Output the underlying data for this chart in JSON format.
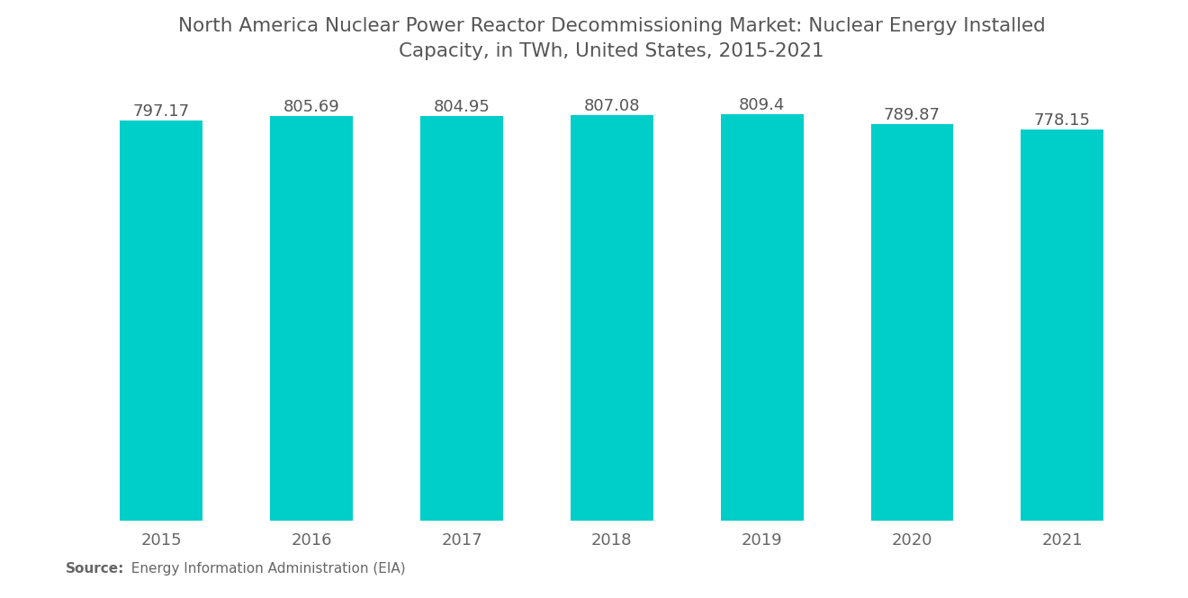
{
  "title_line1": "North America Nuclear Power Reactor Decommissioning Market: Nuclear Energy Installed",
  "title_line2": "Capacity, in TWh, United States, 2015-2021",
  "categories": [
    "2015",
    "2016",
    "2017",
    "2018",
    "2019",
    "2020",
    "2021"
  ],
  "values": [
    797.17,
    805.69,
    804.95,
    807.08,
    809.4,
    789.87,
    778.15
  ],
  "bar_color": "#00CEC9",
  "background_color": "#ffffff",
  "title_fontsize": 15.5,
  "value_label_fontsize": 13,
  "tick_fontsize": 13,
  "source_bold": "Source:",
  "source_plain": "  Energy Information Administration (EIA)",
  "ylim_min": 0,
  "ylim_max": 870,
  "title_color": "#555555",
  "tick_color": "#666666",
  "source_fontsize": 11,
  "bar_width": 0.55
}
